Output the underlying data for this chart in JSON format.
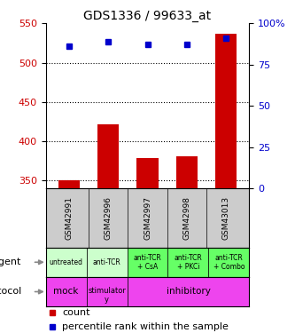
{
  "title": "GDS1336 / 99633_at",
  "samples": [
    "GSM42991",
    "GSM42996",
    "GSM42997",
    "GSM42998",
    "GSM43013"
  ],
  "counts": [
    351,
    422,
    379,
    381,
    537
  ],
  "percentile_ranks": [
    86,
    89,
    87,
    87,
    91
  ],
  "ylim_left": [
    340,
    550
  ],
  "ylim_right": [
    0,
    100
  ],
  "yticks_left": [
    350,
    400,
    450,
    500,
    550
  ],
  "yticks_right": [
    0,
    25,
    50,
    75,
    100
  ],
  "bar_color": "#cc0000",
  "dot_color": "#0000cc",
  "agent_labels": [
    "untreated",
    "anti-TCR",
    "anti-TCR\n+ CsA",
    "anti-TCR\n+ PKCi",
    "anti-TCR\n+ Combo"
  ],
  "agent_bg_colors": [
    "#ccffcc",
    "#ccffcc",
    "#66ff66",
    "#66ff66",
    "#66ff66"
  ],
  "protocol_mock_color": "#ee44ee",
  "protocol_stim_color": "#ee44ee",
  "protocol_inhib_color": "#ee44ee",
  "sample_bg_color": "#cccccc",
  "background_color": "#ffffff",
  "tick_fontsize": 8,
  "legend_fontsize": 8
}
